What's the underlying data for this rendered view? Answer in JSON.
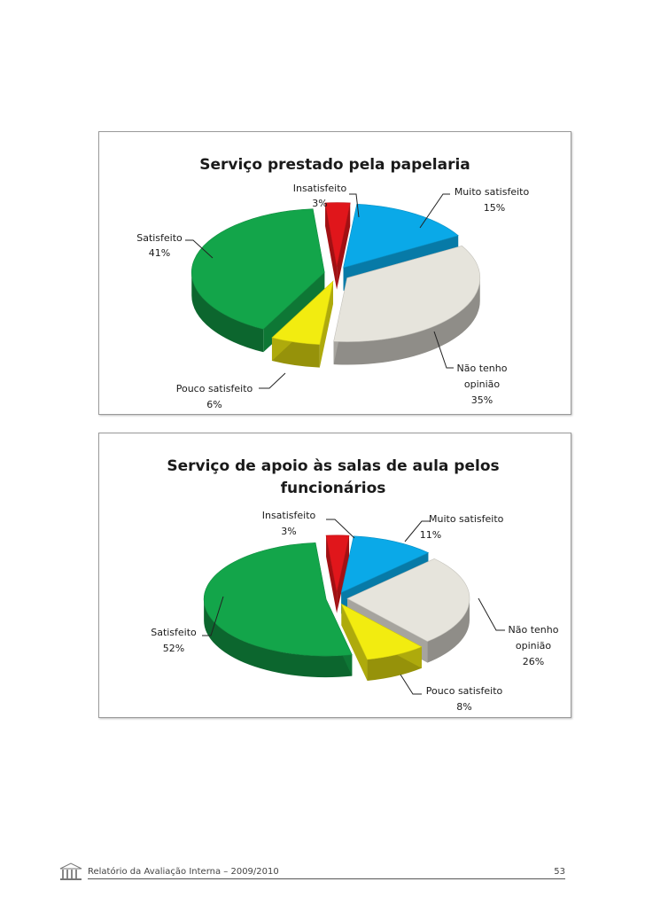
{
  "chart_data": [
    {
      "type": "pie",
      "title": "Serviço prestado pela papelaria",
      "slices": [
        {
          "label": "Insatisfeito",
          "value": 3,
          "value_label": "3%",
          "color": "#e0161b"
        },
        {
          "label": "Muito satisfeito",
          "value": 15,
          "value_label": "15%",
          "color": "#0aa9e8"
        },
        {
          "label": "Não tenho opinião",
          "value": 35,
          "value_label": "35%",
          "color": "#e6e4dc"
        },
        {
          "label": "Pouco satisfeito",
          "value": 6,
          "value_label": "6%",
          "color": "#f2ec10"
        },
        {
          "label": "Satisfeito",
          "value": 41,
          "value_label": "41%",
          "color": "#13a54a"
        }
      ]
    },
    {
      "type": "pie",
      "title": "Serviço de apoio às salas de aula pelos funcionários",
      "slices": [
        {
          "label": "Insatisfeito",
          "value": 3,
          "value_label": "3%",
          "color": "#e0161b"
        },
        {
          "label": "Muito satisfeito",
          "value": 11,
          "value_label": "11%",
          "color": "#0aa9e8"
        },
        {
          "label": "Não tenho opinião",
          "value": 26,
          "value_label": "26%",
          "color": "#e6e4dc"
        },
        {
          "label": "Pouco satisfeito",
          "value": 8,
          "value_label": "8%",
          "color": "#f2ec10"
        },
        {
          "label": "Satisfeito",
          "value": 52,
          "value_label": "52%",
          "color": "#13a54a"
        }
      ]
    }
  ],
  "footer": {
    "text": "Relatório da Avaliação Interna – 2009/2010",
    "page_number": "53"
  }
}
